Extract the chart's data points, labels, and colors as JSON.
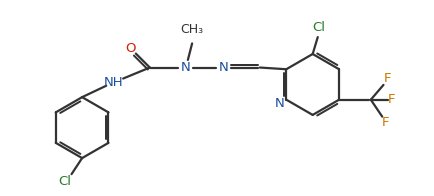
{
  "bg_color": "#ffffff",
  "bond_color": "#333333",
  "line_width": 1.6,
  "figsize": [
    4.35,
    1.96
  ],
  "dpi": 100,
  "atom_colors": {
    "C": "#333333",
    "N": "#1a4fa0",
    "O": "#cc2200",
    "Cl": "#2a7a2a",
    "F": "#cc7700"
  },
  "font_size": 9.5
}
